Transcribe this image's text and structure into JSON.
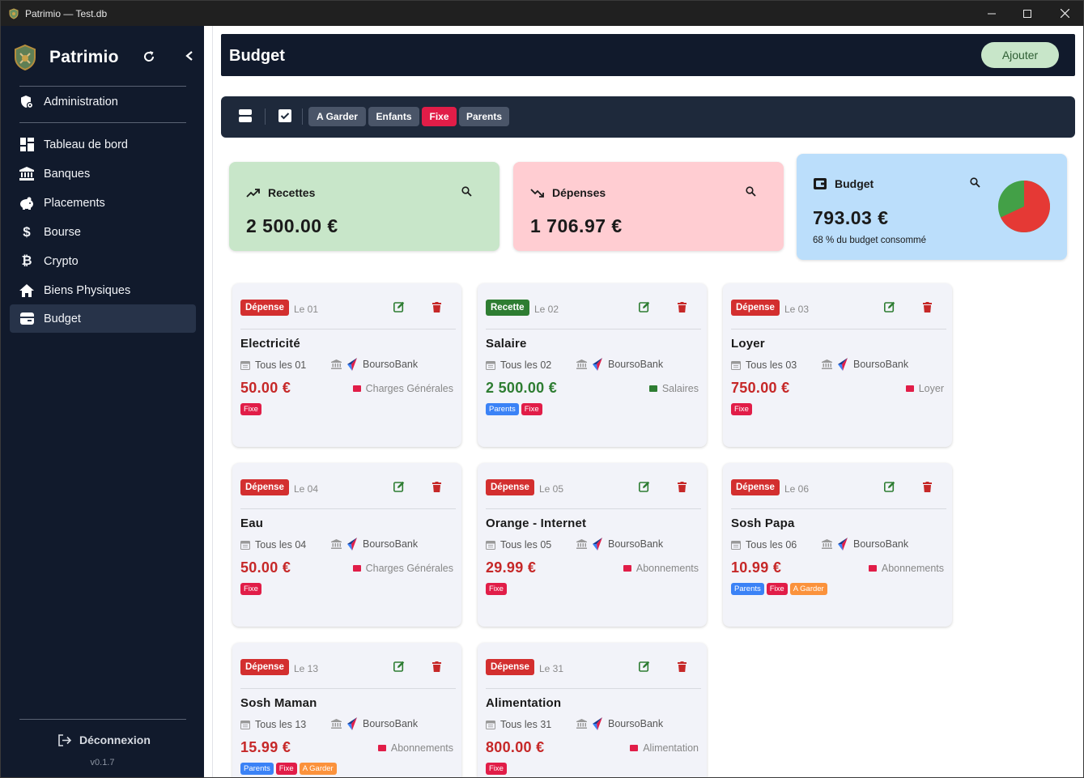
{
  "window": {
    "title": "Patrimio — Test.db"
  },
  "sidebar": {
    "brand": "Patrimio",
    "admin": "Administration",
    "items": [
      {
        "label": "Tableau de bord",
        "icon": "dashboard-icon"
      },
      {
        "label": "Banques",
        "icon": "bank-icon"
      },
      {
        "label": "Placements",
        "icon": "piggy-bank-icon"
      },
      {
        "label": "Bourse",
        "icon": "dollar-icon"
      },
      {
        "label": "Crypto",
        "icon": "bitcoin-icon"
      },
      {
        "label": "Biens Physiques",
        "icon": "home-icon"
      },
      {
        "label": "Budget",
        "icon": "wallet-icon",
        "active": true
      }
    ],
    "logout": "Déconnexion",
    "version": "v0.1.7"
  },
  "header": {
    "title": "Budget",
    "add_label": "Ajouter"
  },
  "filters": {
    "tags": [
      {
        "label": "A Garder",
        "active": false
      },
      {
        "label": "Enfants",
        "active": false
      },
      {
        "label": "Fixe",
        "active": true
      },
      {
        "label": "Parents",
        "active": false
      }
    ]
  },
  "summary": {
    "income": {
      "label": "Recettes",
      "value": "2 500.00 €",
      "color": "#c8e6c9"
    },
    "expenses": {
      "label": "Dépenses",
      "value": "1 706.97 €",
      "color": "#ffcdd2"
    },
    "budget": {
      "label": "Budget",
      "value": "793.03 €",
      "consumed": "68 % du budget consommé",
      "consumed_fraction": 0.68,
      "color": "#bbdefb"
    }
  },
  "cards": [
    {
      "type": "Dépense",
      "day": "Le 01",
      "title": "Electricité",
      "freq": "Tous les 01",
      "bank": "BoursoBank",
      "amount": "50.00 €",
      "category": "Charges Générales",
      "cat_color": "#e11d48",
      "tags": [
        "Fixe"
      ]
    },
    {
      "type": "Recette",
      "day": "Le 02",
      "title": "Salaire",
      "freq": "Tous les 02",
      "bank": "BoursoBank",
      "amount": "2 500.00 €",
      "category": "Salaires",
      "cat_color": "#2e7d32",
      "tags": [
        "Parents",
        "Fixe"
      ]
    },
    {
      "type": "Dépense",
      "day": "Le 03",
      "title": "Loyer",
      "freq": "Tous les 03",
      "bank": "BoursoBank",
      "amount": "750.00 €",
      "category": "Loyer",
      "cat_color": "#e11d48",
      "tags": [
        "Fixe"
      ]
    },
    {
      "type": "Dépense",
      "day": "Le 04",
      "title": "Eau",
      "freq": "Tous les 04",
      "bank": "BoursoBank",
      "amount": "50.00 €",
      "category": "Charges Générales",
      "cat_color": "#e11d48",
      "tags": [
        "Fixe"
      ]
    },
    {
      "type": "Dépense",
      "day": "Le 05",
      "title": "Orange - Internet",
      "freq": "Tous les 05",
      "bank": "BoursoBank",
      "amount": "29.99 €",
      "category": "Abonnements",
      "cat_color": "#e11d48",
      "tags": [
        "Fixe"
      ]
    },
    {
      "type": "Dépense",
      "day": "Le 06",
      "title": "Sosh Papa",
      "freq": "Tous les 06",
      "bank": "BoursoBank",
      "amount": "10.99 €",
      "category": "Abonnements",
      "cat_color": "#e11d48",
      "tags": [
        "Parents",
        "Fixe",
        "A Garder"
      ]
    },
    {
      "type": "Dépense",
      "day": "Le 13",
      "title": "Sosh Maman",
      "freq": "Tous les 13",
      "bank": "BoursoBank",
      "amount": "15.99 €",
      "category": "Abonnements",
      "cat_color": "#e11d48",
      "tags": [
        "Parents",
        "Fixe",
        "A Garder"
      ]
    },
    {
      "type": "Dépense",
      "day": "Le 31",
      "title": "Alimentation",
      "freq": "Tous les 31",
      "bank": "BoursoBank",
      "amount": "800.00 €",
      "category": "Alimentation",
      "cat_color": "#e11d48",
      "tags": [
        "Fixe"
      ]
    }
  ]
}
